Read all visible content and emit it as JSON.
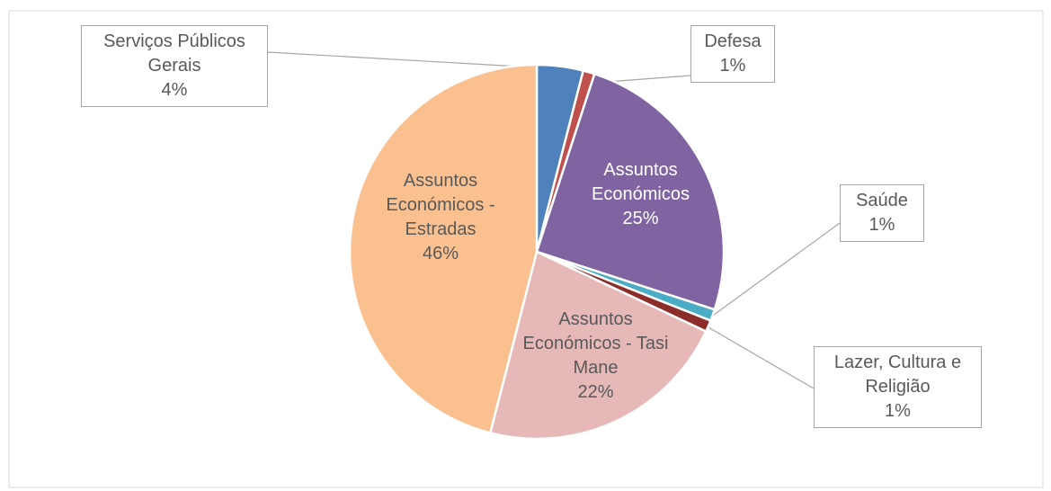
{
  "chart_data": {
    "type": "pie",
    "categories": [
      "Serviços Públicos Gerais",
      "Defesa",
      "Assuntos Económicos",
      "Saúde",
      "Lazer, Cultura e Religião",
      "Assuntos Económicos - Tasi Mane",
      "Assuntos Económicos - Estradas"
    ],
    "values": [
      4,
      1,
      25,
      1,
      1,
      22,
      46
    ],
    "value_labels": [
      "4%",
      "1%",
      "25%",
      "1%",
      "1%",
      "22%",
      "46%"
    ],
    "colors": [
      "#4f81bd",
      "#c0504d",
      "#8064a2",
      "#4bacc6",
      "#8b2d2a",
      "#e6b9b8",
      "#fac090"
    ]
  }
}
